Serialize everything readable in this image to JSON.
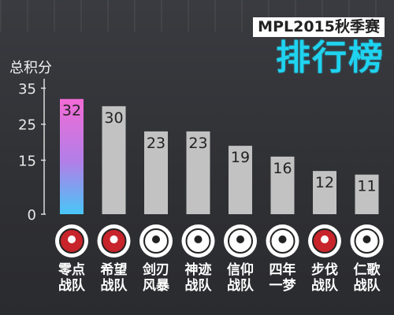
{
  "header": {
    "season": "MPL2015秋季赛",
    "title": "排行榜"
  },
  "chart_data": {
    "type": "bar",
    "ylabel": "总积分",
    "ylim": [
      0,
      35
    ],
    "yticks": [
      0,
      15,
      25,
      35
    ],
    "categories": [
      [
        "零点",
        "战队"
      ],
      [
        "希望",
        "战队"
      ],
      [
        "剑刃",
        "风暴"
      ],
      [
        "神迹",
        "战队"
      ],
      [
        "信仰",
        "战队"
      ],
      [
        "四年",
        "一梦"
      ],
      [
        "步伐",
        "战队"
      ],
      [
        "仁歌",
        "战队"
      ]
    ],
    "values": [
      32,
      30,
      23,
      23,
      19,
      16,
      12,
      11
    ],
    "bar_colors": [
      "gradient-pink-blue",
      "#c2c2c2",
      "#c2c2c2",
      "#c2c2c2",
      "#c2c2c2",
      "#c2c2c2",
      "#c2c2c2",
      "#c2c2c2"
    ],
    "logos": [
      "ZERO",
      "HOPE",
      "BLADESTORM",
      "SIGNS",
      "FAITH",
      "DREAM",
      "PACE",
      "REN"
    ]
  }
}
